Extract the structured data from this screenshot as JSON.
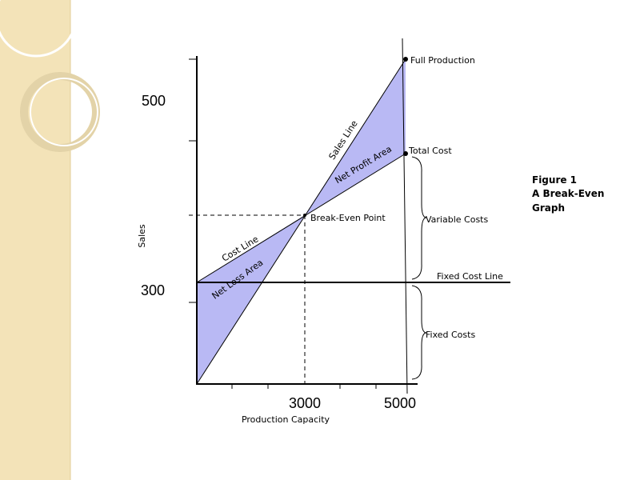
{
  "diagram": {
    "axis_labels": {
      "y_high": "500",
      "y_low": "300",
      "x_mid": "3000",
      "x_high": "5000",
      "x_title": "Production Capacity",
      "y_title": "Sales"
    },
    "labels": {
      "full_production": "Full Production",
      "total_cost": "Total Cost",
      "break_even": "Break-Even Point",
      "variable_costs": "Variable Costs",
      "fixed_cost_line": "Fixed Cost Line",
      "fixed_costs": "Fixed Costs",
      "sales_line": "Sales Line",
      "net_profit_area": "Net Profit Area",
      "cost_line": "Cost Line",
      "net_loss_area": "Net Loss Area"
    },
    "caption": [
      "Figure 1",
      "A Break-Even",
      "Graph"
    ]
  }
}
